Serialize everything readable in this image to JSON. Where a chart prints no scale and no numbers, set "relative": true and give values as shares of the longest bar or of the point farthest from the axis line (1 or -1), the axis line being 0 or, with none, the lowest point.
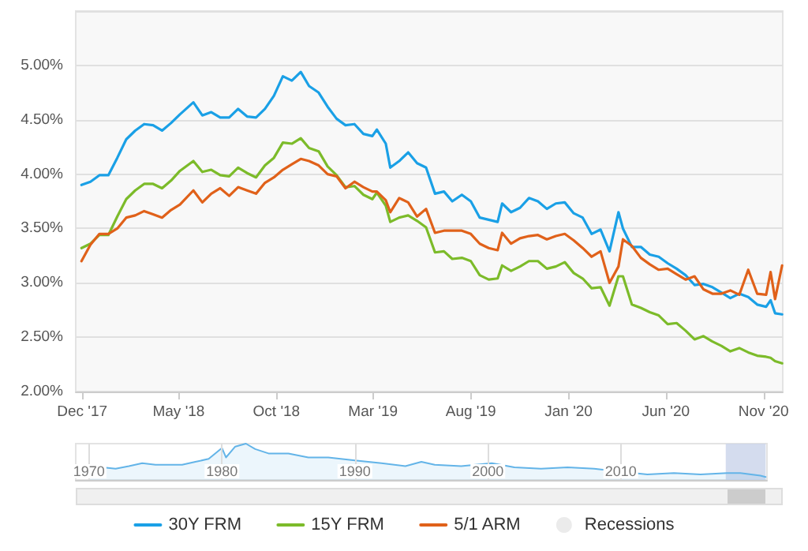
{
  "chart_data": [
    {
      "type": "line",
      "x": [
        "2017-11-30",
        "2017-12-14",
        "2017-12-28",
        "2018-01-11",
        "2018-01-25",
        "2018-02-08",
        "2018-02-22",
        "2018-03-08",
        "2018-03-22",
        "2018-04-05",
        "2018-04-19",
        "2018-05-03",
        "2018-05-24",
        "2018-06-07",
        "2018-06-21",
        "2018-07-05",
        "2018-07-19",
        "2018-08-02",
        "2018-08-16",
        "2018-08-30",
        "2018-09-13",
        "2018-09-27",
        "2018-10-11",
        "2018-10-25",
        "2018-11-08",
        "2018-11-21",
        "2018-12-06",
        "2018-12-20",
        "2019-01-03",
        "2019-01-17",
        "2019-01-31",
        "2019-02-14",
        "2019-02-28",
        "2019-03-07",
        "2019-03-21",
        "2019-03-28",
        "2019-04-11",
        "2019-04-25",
        "2019-05-09",
        "2019-05-23",
        "2019-06-06",
        "2019-06-20",
        "2019-07-03",
        "2019-07-18",
        "2019-08-01",
        "2019-08-15",
        "2019-08-29",
        "2019-09-12",
        "2019-09-19",
        "2019-10-03",
        "2019-10-17",
        "2019-10-31",
        "2019-11-14",
        "2019-11-28",
        "2019-12-12",
        "2019-12-26",
        "2020-01-09",
        "2020-01-23",
        "2020-02-06",
        "2020-02-20",
        "2020-03-05",
        "2020-03-19",
        "2020-03-26",
        "2020-04-09",
        "2020-04-23",
        "2020-05-07",
        "2020-05-21",
        "2020-06-04",
        "2020-06-18",
        "2020-07-02",
        "2020-07-16",
        "2020-07-30",
        "2020-08-13",
        "2020-08-27",
        "2020-09-10",
        "2020-09-24",
        "2020-10-08",
        "2020-10-22",
        "2020-11-05",
        "2020-11-12",
        "2020-11-19",
        "2020-11-30"
      ],
      "series": [
        {
          "name": "30Y FRM",
          "color": "#1aa0e6",
          "values": [
            3.9,
            3.93,
            3.99,
            3.99,
            4.15,
            4.32,
            4.4,
            4.46,
            4.45,
            4.4,
            4.47,
            4.55,
            4.66,
            4.54,
            4.57,
            4.52,
            4.52,
            4.6,
            4.53,
            4.52,
            4.6,
            4.72,
            4.9,
            4.86,
            4.94,
            4.81,
            4.75,
            4.62,
            4.51,
            4.45,
            4.46,
            4.37,
            4.35,
            4.41,
            4.28,
            4.06,
            4.12,
            4.2,
            4.1,
            4.06,
            3.82,
            3.84,
            3.75,
            3.81,
            3.75,
            3.6,
            3.58,
            3.56,
            3.73,
            3.65,
            3.69,
            3.78,
            3.75,
            3.68,
            3.73,
            3.74,
            3.64,
            3.6,
            3.45,
            3.49,
            3.29,
            3.65,
            3.5,
            3.33,
            3.33,
            3.26,
            3.24,
            3.18,
            3.13,
            3.07,
            2.98,
            2.99,
            2.96,
            2.91,
            2.86,
            2.9,
            2.87,
            2.8,
            2.78,
            2.84,
            2.72,
            2.71
          ]
        },
        {
          "name": "15Y FRM",
          "color": "#7cbb2a",
          "values": [
            3.32,
            3.36,
            3.44,
            3.44,
            3.61,
            3.77,
            3.85,
            3.91,
            3.91,
            3.87,
            3.94,
            4.03,
            4.12,
            4.02,
            4.04,
            3.99,
            3.98,
            4.06,
            4.01,
            3.97,
            4.08,
            4.15,
            4.29,
            4.28,
            4.33,
            4.24,
            4.21,
            4.07,
            3.99,
            3.88,
            3.89,
            3.81,
            3.77,
            3.83,
            3.71,
            3.56,
            3.6,
            3.62,
            3.57,
            3.51,
            3.28,
            3.29,
            3.22,
            3.23,
            3.2,
            3.07,
            3.03,
            3.04,
            3.16,
            3.11,
            3.15,
            3.2,
            3.2,
            3.13,
            3.15,
            3.19,
            3.09,
            3.04,
            2.95,
            2.96,
            2.79,
            3.06,
            3.06,
            2.8,
            2.77,
            2.73,
            2.7,
            2.62,
            2.63,
            2.56,
            2.48,
            2.51,
            2.46,
            2.42,
            2.37,
            2.4,
            2.36,
            2.33,
            2.32,
            2.31,
            2.28,
            2.26
          ]
        },
        {
          "name": "5/1 ARM",
          "color": "#e0611a",
          "values": [
            3.2,
            3.35,
            3.45,
            3.45,
            3.5,
            3.6,
            3.62,
            3.66,
            3.63,
            3.6,
            3.67,
            3.72,
            3.85,
            3.74,
            3.82,
            3.87,
            3.8,
            3.88,
            3.85,
            3.82,
            3.92,
            3.97,
            4.04,
            4.09,
            4.14,
            4.12,
            4.08,
            4.0,
            3.98,
            3.87,
            3.93,
            3.88,
            3.84,
            3.84,
            3.76,
            3.65,
            3.78,
            3.74,
            3.61,
            3.68,
            3.46,
            3.48,
            3.48,
            3.48,
            3.45,
            3.36,
            3.32,
            3.3,
            3.46,
            3.36,
            3.41,
            3.43,
            3.44,
            3.4,
            3.43,
            3.45,
            3.39,
            3.32,
            3.24,
            3.29,
            3.0,
            3.15,
            3.4,
            3.34,
            3.23,
            3.17,
            3.12,
            3.13,
            3.08,
            3.03,
            3.06,
            2.94,
            2.9,
            2.9,
            2.93,
            2.89,
            3.12,
            2.9,
            2.89,
            3.1,
            2.85,
            3.16
          ]
        },
        {
          "name": "Recessions",
          "type": "scatter",
          "color": "#e6e6e6",
          "values": [
            null,
            null,
            null,
            null,
            null,
            null,
            null,
            null,
            null,
            null,
            null,
            null,
            null,
            null,
            null,
            null,
            null,
            null,
            null,
            null,
            null,
            null,
            null,
            null,
            null,
            null,
            null,
            null,
            null,
            null,
            null,
            null,
            null,
            null,
            null,
            null,
            null,
            null,
            null,
            null,
            null,
            null,
            null,
            null,
            null,
            null,
            null,
            null,
            null,
            null,
            null,
            null,
            null,
            null,
            null,
            null,
            null,
            null,
            null,
            null,
            null,
            null,
            null,
            null,
            null,
            null,
            null,
            null,
            null,
            null,
            null,
            null,
            null,
            null,
            null,
            null,
            null,
            null,
            null,
            null,
            null,
            null
          ]
        }
      ],
      "xlim": [
        "2017-11-21",
        "2020-12-01"
      ],
      "xticks": [
        {
          "value": "2017-12-01",
          "label": "Dec '17"
        },
        {
          "value": "2018-05-01",
          "label": "May '18"
        },
        {
          "value": "2018-10-01",
          "label": "Oct '18"
        },
        {
          "value": "2019-03-01",
          "label": "Mar '19"
        },
        {
          "value": "2019-08-01",
          "label": "Aug '19"
        },
        {
          "value": "2020-01-01",
          "label": "Jan '20"
        },
        {
          "value": "2020-06-01",
          "label": "Jun '20"
        },
        {
          "value": "2020-11-01",
          "label": "Nov '20"
        }
      ],
      "ylim": [
        2,
        5.5
      ],
      "yticks": [
        {
          "value": 2,
          "label": "2.00%"
        },
        {
          "value": 2.5,
          "label": "2.50%"
        },
        {
          "value": 3,
          "label": "3.00%"
        },
        {
          "value": 3.5,
          "label": "3.50%"
        },
        {
          "value": 4,
          "label": "4.00%"
        },
        {
          "value": 4.5,
          "label": "4.50%"
        },
        {
          "value": 5,
          "label": "5.00%"
        },
        {
          "value": 5.5,
          "label": null
        }
      ],
      "grid": "y",
      "legend": "bottom",
      "marker": "none",
      "line_style": "solid"
    },
    {
      "type": "area",
      "relative": true,
      "tick_labels": "x",
      "grid": "x",
      "x": [
        1970,
        1971,
        1972,
        1973,
        1974,
        1975,
        1976,
        1977,
        1978,
        1979,
        1980,
        1980.3,
        1981,
        1981.8,
        1982.5,
        1983.5,
        1985,
        1986.5,
        1988,
        1990,
        1992,
        1993.8,
        1995,
        1996,
        1998,
        2000.3,
        2002,
        2004,
        2006,
        2008,
        2010,
        2012,
        2014,
        2016,
        2018,
        2019,
        2020.5,
        2020.9
      ],
      "series": [
        {
          "color": "#63b4e8",
          "values": [
            0.35,
            0.35,
            0.31,
            0.38,
            0.46,
            0.42,
            0.42,
            0.42,
            0.5,
            0.58,
            0.88,
            0.62,
            0.92,
            1,
            0.85,
            0.73,
            0.73,
            0.62,
            0.62,
            0.54,
            0.46,
            0.38,
            0.5,
            0.42,
            0.38,
            0.46,
            0.35,
            0.31,
            0.35,
            0.31,
            0.23,
            0.15,
            0.19,
            0.15,
            0.19,
            0.19,
            0.12,
            0.08
          ]
        }
      ],
      "xlim": [
        1969,
        2021
      ],
      "xticks": [
        1970,
        1980,
        1990,
        2000,
        2010
      ],
      "bands": [
        {
          "axis": "x",
          "from": 2017.9,
          "to": 2020.9,
          "color": "#c9d3ea"
        }
      ]
    }
  ]
}
